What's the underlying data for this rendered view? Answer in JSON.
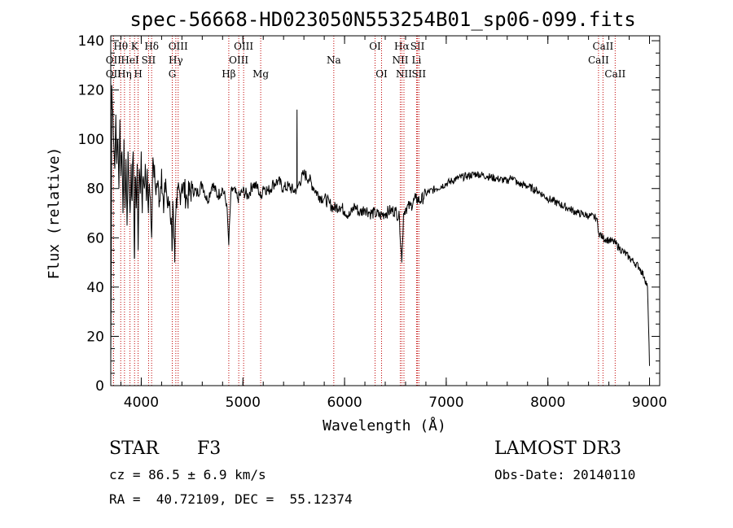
{
  "chart_data": {
    "type": "line",
    "title": "spec-56668-HD023050N553254B01_sp06-099.fits",
    "xlabel": "Wavelength (Å)",
    "ylabel": "Flux (relative)",
    "xlim": [
      3700,
      9100
    ],
    "ylim": [
      0,
      142
    ],
    "xticks": [
      4000,
      5000,
      6000,
      7000,
      8000,
      9000
    ],
    "yticks": [
      0,
      20,
      40,
      60,
      80,
      100,
      120,
      140
    ],
    "grid": false,
    "spectral_lines": [
      {
        "label": "OII",
        "wavelength": 3727,
        "row": 2
      },
      {
        "label": "Hθ",
        "wavelength": 3798,
        "row": 1
      },
      {
        "label": "OII",
        "wavelength": 3727,
        "row": 3
      },
      {
        "label": "HeI",
        "wavelength": 3889,
        "row": 2
      },
      {
        "label": "Hη",
        "wavelength": 3835,
        "row": 3
      },
      {
        "label": "K",
        "wavelength": 3934,
        "row": 1
      },
      {
        "label": "SII",
        "wavelength": 4072,
        "row": 2
      },
      {
        "label": "H",
        "wavelength": 3969,
        "row": 3
      },
      {
        "label": "Hδ",
        "wavelength": 4102,
        "row": 1
      },
      {
        "label": "OIII",
        "wavelength": 4363,
        "row": 1
      },
      {
        "label": "Hγ",
        "wavelength": 4340,
        "row": 2
      },
      {
        "label": "G",
        "wavelength": 4305,
        "row": 3
      },
      {
        "label": "OIII",
        "wavelength": 5007,
        "row": 1
      },
      {
        "label": "OIII",
        "wavelength": 4959,
        "row": 2
      },
      {
        "label": "Hβ",
        "wavelength": 4861,
        "row": 3
      },
      {
        "label": "Mg",
        "wavelength": 5175,
        "row": 3
      },
      {
        "label": "Na",
        "wavelength": 5894,
        "row": 2
      },
      {
        "label": "OI",
        "wavelength": 6300,
        "row": 1
      },
      {
        "label": "OI",
        "wavelength": 6364,
        "row": 3
      },
      {
        "label": "Hα",
        "wavelength": 6563,
        "row": 1
      },
      {
        "label": "NII",
        "wavelength": 6548,
        "row": 2
      },
      {
        "label": "NII",
        "wavelength": 6584,
        "row": 3
      },
      {
        "label": "SII",
        "wavelength": 6717,
        "row": 1
      },
      {
        "label": "Li",
        "wavelength": 6708,
        "row": 2
      },
      {
        "label": "SII",
        "wavelength": 6731,
        "row": 3
      },
      {
        "label": "CaII",
        "wavelength": 8542,
        "row": 1
      },
      {
        "label": "CaII",
        "wavelength": 8498,
        "row": 2
      },
      {
        "label": "CaII",
        "wavelength": 8662,
        "row": 3
      }
    ],
    "series": [
      {
        "x": [
          3700,
          3705,
          3710,
          3720,
          3730,
          3740,
          3750,
          3760,
          3770,
          3780,
          3790,
          3800,
          3810,
          3820,
          3830,
          3840,
          3850,
          3860,
          3870,
          3880,
          3890,
          3900,
          3910,
          3920,
          3930,
          3934,
          3940,
          3950,
          3960,
          3969,
          3980,
          3990,
          4000,
          4010,
          4020,
          4030,
          4040,
          4050,
          4060,
          4070,
          4080,
          4090,
          4102,
          4110,
          4120,
          4140,
          4160,
          4180,
          4200,
          4220,
          4240,
          4260,
          4280,
          4300,
          4305,
          4310,
          4320,
          4330,
          4340,
          4350,
          4360,
          4380,
          4400,
          4450,
          4500,
          4550,
          4600,
          4650,
          4700,
          4750,
          4800,
          4840,
          4861,
          4880,
          4900,
          4950,
          5000,
          5050,
          5100,
          5150,
          5175,
          5200,
          5250,
          5300,
          5350,
          5400,
          5450,
          5500,
          5530,
          5532,
          5534,
          5550,
          5600,
          5650,
          5700,
          5750,
          5800,
          5850,
          5894,
          5950,
          6000,
          6050,
          6100,
          6150,
          6200,
          6250,
          6300,
          6350,
          6400,
          6450,
          6500,
          6540,
          6563,
          6580,
          6600,
          6650,
          6700,
          6750,
          6800,
          6900,
          7000,
          7100,
          7200,
          7300,
          7400,
          7500,
          7600,
          7650,
          7700,
          7800,
          7900,
          8000,
          8100,
          8200,
          8300,
          8400,
          8480,
          8500,
          8542,
          8600,
          8662,
          8700,
          8750,
          8800,
          8850,
          8900,
          8950,
          8980,
          9000
        ],
        "y": [
          10,
          50,
          122,
          112,
          98,
          88,
          110,
          90,
          100,
          80,
          108,
          85,
          95,
          70,
          100,
          72,
          92,
          65,
          95,
          80,
          70,
          90,
          75,
          95,
          60,
          52,
          85,
          72,
          90,
          55,
          88,
          78,
          95,
          70,
          85,
          80,
          90,
          75,
          88,
          70,
          82,
          76,
          60,
          85,
          90,
          80,
          82,
          75,
          88,
          70,
          84,
          72,
          75,
          62,
          56,
          75,
          60,
          50,
          70,
          72,
          80,
          78,
          82,
          76,
          80,
          78,
          82,
          75,
          82,
          77,
          80,
          74,
          57,
          77,
          80,
          76,
          79,
          77,
          82,
          80,
          76,
          81,
          79,
          82,
          83,
          80,
          81,
          79,
          80,
          112,
          80,
          82,
          86,
          84,
          80,
          77,
          76,
          74,
          72,
          73,
          71,
          69,
          73,
          70,
          72,
          70,
          70,
          69,
          70,
          71,
          71,
          68,
          50,
          70,
          72,
          73,
          76,
          75,
          78,
          80,
          82,
          84,
          85,
          86,
          85,
          84,
          83,
          85,
          82,
          81,
          79,
          76,
          74,
          72,
          70,
          69,
          68,
          62,
          60,
          59,
          58,
          56,
          54,
          52,
          50,
          48,
          44,
          40,
          8
        ]
      }
    ]
  },
  "info": {
    "object_class": "STAR",
    "subclass": "F3",
    "survey": "LAMOST DR3",
    "redshift": "cz = 86.5 ± 6.9 km/s",
    "obs_date": "Obs-Date: 20140110",
    "coords": "RA =  40.72109, DEC =  55.12374"
  }
}
